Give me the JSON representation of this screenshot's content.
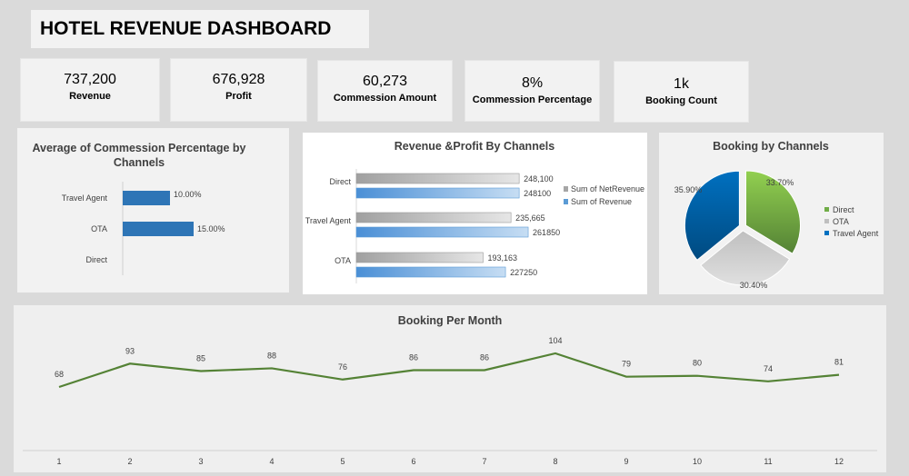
{
  "title": "HOTEL REVENUE DASHBOARD",
  "kpis": [
    {
      "value": "737,200",
      "label": "Revenue"
    },
    {
      "value": "676,928",
      "label": "Profit"
    },
    {
      "value": "60,273",
      "label": "Commession Amount"
    },
    {
      "value": "8%",
      "label": "Commession Percentage"
    },
    {
      "value": "1k",
      "label": "Booking Count"
    }
  ],
  "chart_data": [
    {
      "type": "bar",
      "orientation": "horizontal",
      "title": "Average of Commession Percentage by Channels",
      "categories": [
        "Travel Agent",
        "OTA",
        "Direct"
      ],
      "values": [
        10,
        15,
        null
      ],
      "data_labels": [
        "10.00%",
        "15.00%",
        ""
      ],
      "color": "#2e75b6"
    },
    {
      "type": "bar",
      "orientation": "horizontal",
      "title": "Revenue &Profit By Channels",
      "categories": [
        "Direct",
        "Travel Agent",
        "OTA"
      ],
      "series": [
        {
          "name": "Sum of NetRevenue",
          "values": [
            248100,
            235665,
            193163
          ],
          "labels": [
            "248,100",
            "235,665",
            "193,163"
          ],
          "color": "#a6a6a6"
        },
        {
          "name": "Sum of Revenue",
          "values": [
            248100,
            261850,
            227250
          ],
          "labels": [
            "248100",
            "261850",
            "227250"
          ],
          "color": "#5b9bd5"
        }
      ],
      "legend": "right"
    },
    {
      "type": "pie",
      "title": "Booking by Channels",
      "categories": [
        "Direct",
        "OTA",
        "Travel Agent"
      ],
      "values": [
        33.7,
        30.4,
        35.9
      ],
      "labels": [
        "33.70%",
        "30.40%",
        "35.90%"
      ],
      "colors": [
        "#70ad47",
        "#bfbfbf",
        "#0070c0"
      ],
      "legend": "right"
    },
    {
      "type": "line",
      "title": "Booking Per Month",
      "x": [
        1,
        2,
        3,
        4,
        5,
        6,
        7,
        8,
        9,
        10,
        11,
        12
      ],
      "values": [
        68,
        93,
        85,
        88,
        76,
        86,
        86,
        104,
        79,
        80,
        74,
        81
      ],
      "color": "#548235"
    }
  ]
}
